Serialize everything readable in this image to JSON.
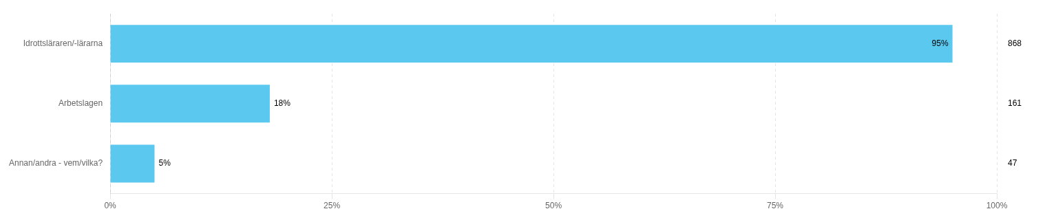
{
  "chart_data": {
    "type": "bar",
    "orientation": "horizontal",
    "categories": [
      "Idrottsläraren/-lärarna",
      "Arbetslagen",
      "Annan/andra - vem/vilka?"
    ],
    "values": [
      95,
      18,
      5
    ],
    "value_labels": [
      "95%",
      "18%",
      "5%"
    ],
    "data_labels": true,
    "counts": [
      868,
      161,
      47
    ],
    "color": "#5bc8f0",
    "xlim": [
      0,
      100
    ],
    "xticks": [
      {
        "value": 0,
        "label": "0%"
      },
      {
        "value": 25,
        "label": "25%"
      },
      {
        "value": 50,
        "label": "50%"
      },
      {
        "value": 75,
        "label": "75%"
      },
      {
        "value": 100,
        "label": "100%"
      }
    ],
    "grid": true
  }
}
